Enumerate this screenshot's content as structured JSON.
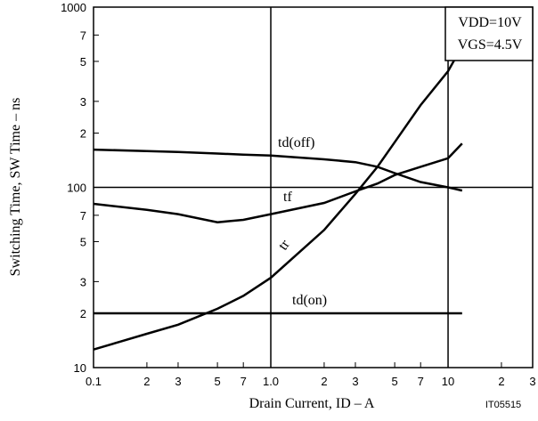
{
  "chart_data": {
    "type": "line",
    "x_label": "Drain Current, ID – A",
    "y_label": "Switching Time, SW Time – ns",
    "annotations": [
      "VDD=10V",
      "VGS=4.5V"
    ],
    "figure_code": "IT05515",
    "log_x": true,
    "log_y": true,
    "grid": "major",
    "xlim": [
      0.1,
      30
    ],
    "ylim": [
      10,
      1000
    ],
    "xticks": [
      0.1,
      {
        "value": 0.2,
        "label": "2"
      },
      {
        "value": 0.3,
        "label": "3"
      },
      {
        "value": 0.5,
        "label": "5"
      },
      {
        "value": 0.7,
        "label": "7"
      },
      {
        "value": 1,
        "label": "1.0"
      },
      {
        "value": 2,
        "label": "2"
      },
      {
        "value": 3,
        "label": "3"
      },
      {
        "value": 5,
        "label": "5"
      },
      {
        "value": 7,
        "label": "7"
      },
      10,
      {
        "value": 20,
        "label": "2"
      },
      {
        "value": 30,
        "label": "3"
      }
    ],
    "yticks": [
      10,
      {
        "value": 20,
        "label": "2"
      },
      {
        "value": 30,
        "label": "3"
      },
      {
        "value": 50,
        "label": "5"
      },
      {
        "value": 70,
        "label": "7"
      },
      100,
      {
        "value": 200,
        "label": "2"
      },
      {
        "value": 300,
        "label": "3"
      },
      {
        "value": 500,
        "label": "5"
      },
      {
        "value": 700,
        "label": "7"
      },
      1000
    ],
    "x": [
      0.1,
      0.2,
      0.3,
      0.5,
      0.7,
      1,
      2,
      3,
      4,
      5,
      7,
      10,
      12
    ],
    "series": [
      {
        "name": "td(off)",
        "color": "#000000",
        "values": [
          162,
          159,
          157,
          154,
          152,
          150,
          143,
          138,
          130,
          120,
          107,
          100,
          96
        ]
      },
      {
        "name": "tf",
        "color": "#000000",
        "values": [
          81,
          75,
          71,
          64,
          66,
          71,
          82,
          95,
          105,
          117,
          130,
          145,
          175
        ]
      },
      {
        "name": "tr",
        "color": "#000000",
        "values": [
          12.6,
          15.4,
          17.3,
          21.2,
          25,
          31.5,
          58,
          92,
          130,
          178,
          286,
          441,
          606
        ]
      },
      {
        "name": "td(on)",
        "color": "#000000",
        "values": [
          20,
          20,
          20,
          20,
          20,
          20,
          20,
          20,
          20,
          20,
          20,
          20,
          20
        ]
      }
    ]
  }
}
